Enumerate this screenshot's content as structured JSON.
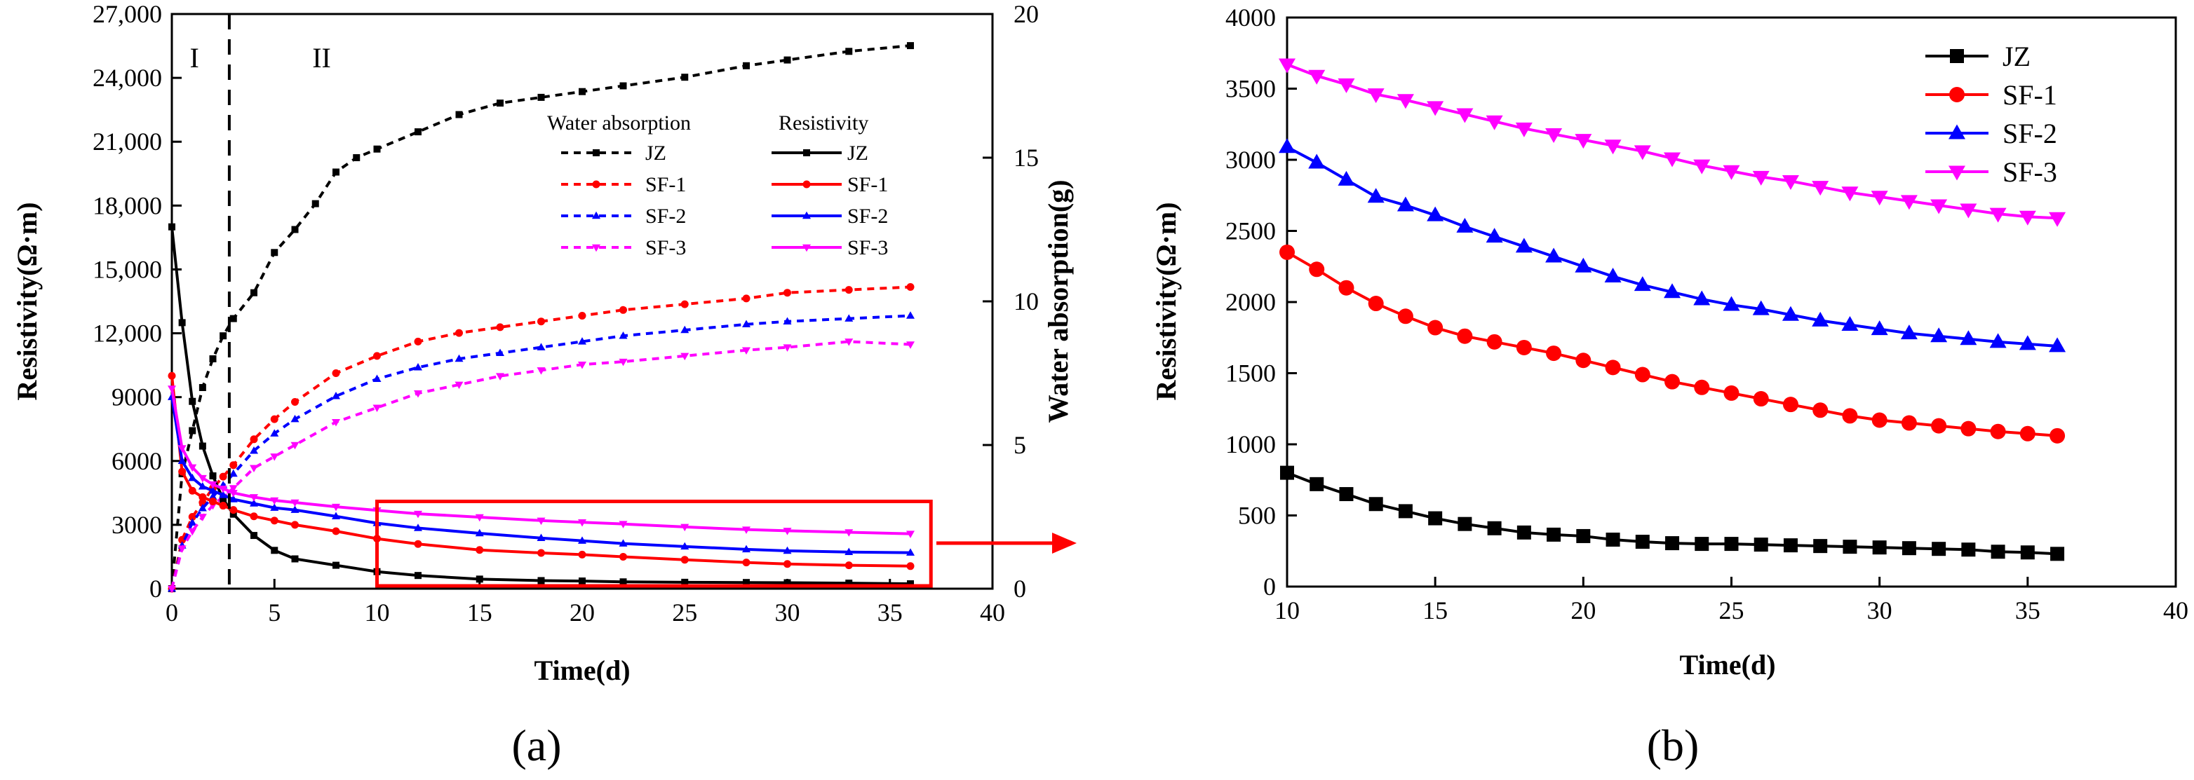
{
  "colors": {
    "JZ": "#000000",
    "SF-1": "#ff0000",
    "SF-2": "#0000ff",
    "SF-3": "#ff00ff",
    "highlight": "#ff0000"
  },
  "chart_data": [
    {
      "type": "line",
      "panel_label": "(a)",
      "title": "",
      "xlabel": "Time(d)",
      "ylabel": "Resistivity(Ω·m)",
      "y2label": "Water absorption(g)",
      "xlim": [
        0,
        40
      ],
      "ylim": [
        0,
        27000
      ],
      "y2lim": [
        0,
        20
      ],
      "xticks": [
        0,
        5,
        10,
        15,
        20,
        25,
        30,
        35,
        40
      ],
      "yticks": [
        0,
        3000,
        6000,
        9000,
        12000,
        15000,
        18000,
        21000,
        24000,
        27000
      ],
      "ytick_labels": [
        "0",
        "3000",
        "6000",
        "9000",
        "12,000",
        "15,000",
        "18,000",
        "21,000",
        "24,000",
        "27,000"
      ],
      "y2ticks": [
        0,
        5,
        10,
        15,
        20
      ],
      "x_tick_labels": [
        "0",
        "5",
        "10",
        "15",
        "20",
        "25",
        "30",
        "35",
        "40"
      ],
      "y2_tick_labels": [
        "0",
        "5",
        "10",
        "15",
        "20"
      ],
      "regions": [
        {
          "label": "I"
        },
        {
          "label": "II"
        }
      ],
      "region_boundary_x": 2.8,
      "legend_titles": [
        "Water absorption",
        "Resistivity"
      ],
      "series_resistivity": [
        {
          "name": "JZ",
          "x": [
            0,
            0.5,
            1,
            1.5,
            2,
            2.5,
            3,
            4,
            5,
            6,
            8,
            10,
            12,
            15,
            18,
            20,
            22,
            25,
            28,
            30,
            33,
            36
          ],
          "values": [
            17000,
            12500,
            8800,
            6700,
            5300,
            4200,
            3500,
            2500,
            1800,
            1400,
            1100,
            800,
            620,
            450,
            380,
            360,
            320,
            300,
            290,
            280,
            260,
            230
          ]
        },
        {
          "name": "SF-1",
          "x": [
            0,
            0.5,
            1,
            1.5,
            2,
            2.5,
            3,
            4,
            5,
            6,
            8,
            10,
            12,
            15,
            18,
            20,
            22,
            25,
            28,
            30,
            33,
            36
          ],
          "values": [
            10000,
            5500,
            4600,
            4300,
            4100,
            3900,
            3700,
            3400,
            3200,
            3000,
            2700,
            2350,
            2100,
            1820,
            1680,
            1600,
            1500,
            1360,
            1230,
            1160,
            1100,
            1060
          ]
        },
        {
          "name": "SF-2",
          "x": [
            0,
            0.5,
            1,
            1.5,
            2,
            2.5,
            3,
            4,
            5,
            6,
            8,
            10,
            12,
            15,
            18,
            20,
            22,
            25,
            28,
            30,
            33,
            36
          ],
          "values": [
            9000,
            6000,
            5200,
            4800,
            4600,
            4400,
            4200,
            4000,
            3800,
            3700,
            3400,
            3080,
            2850,
            2600,
            2380,
            2250,
            2120,
            1980,
            1850,
            1780,
            1720,
            1690
          ]
        },
        {
          "name": "SF-3",
          "x": [
            0,
            0.5,
            1,
            1.5,
            2,
            2.5,
            3,
            4,
            5,
            6,
            8,
            10,
            12,
            15,
            18,
            20,
            22,
            25,
            28,
            30,
            33,
            36
          ],
          "values": [
            9400,
            6600,
            5700,
            5200,
            4900,
            4700,
            4500,
            4300,
            4150,
            4050,
            3850,
            3680,
            3520,
            3360,
            3200,
            3120,
            3040,
            2900,
            2780,
            2720,
            2650,
            2580
          ]
        }
      ],
      "series_water": [
        {
          "name": "JZ",
          "x": [
            0,
            0.5,
            1,
            1.5,
            2,
            2.5,
            3,
            4,
            5,
            6,
            7,
            8,
            9,
            10,
            12,
            14,
            16,
            18,
            20,
            22,
            25,
            28,
            30,
            33,
            36
          ],
          "values": [
            0,
            4,
            5.5,
            7,
            8,
            8.8,
            9.4,
            10.3,
            11.7,
            12.5,
            13.4,
            14.5,
            15,
            15.3,
            15.9,
            16.5,
            16.9,
            17.1,
            17.3,
            17.5,
            17.8,
            18.2,
            18.4,
            18.7,
            18.9
          ]
        },
        {
          "name": "SF-1",
          "x": [
            0,
            0.5,
            1,
            1.5,
            2,
            2.5,
            3,
            4,
            5,
            6,
            8,
            10,
            12,
            14,
            16,
            18,
            20,
            22,
            25,
            28,
            30,
            33,
            36
          ],
          "values": [
            0,
            1.7,
            2.5,
            3,
            3.5,
            3.9,
            4.3,
            5.2,
            5.9,
            6.5,
            7.5,
            8.1,
            8.6,
            8.9,
            9.1,
            9.3,
            9.5,
            9.7,
            9.9,
            10.1,
            10.3,
            10.4,
            10.5
          ]
        },
        {
          "name": "SF-2",
          "x": [
            0,
            0.5,
            1,
            1.5,
            2,
            2.5,
            3,
            4,
            5,
            6,
            8,
            10,
            12,
            14,
            16,
            18,
            20,
            22,
            25,
            28,
            30,
            33,
            36
          ],
          "values": [
            0,
            1.5,
            2.3,
            2.8,
            3.2,
            3.6,
            4,
            4.8,
            5.4,
            5.9,
            6.7,
            7.3,
            7.7,
            8,
            8.2,
            8.4,
            8.6,
            8.8,
            9,
            9.2,
            9.3,
            9.4,
            9.5
          ]
        },
        {
          "name": "SF-3",
          "x": [
            0,
            0.5,
            1,
            1.5,
            2,
            2.5,
            3,
            4,
            5,
            6,
            8,
            10,
            12,
            14,
            16,
            18,
            20,
            22,
            25,
            28,
            30,
            33,
            36
          ],
          "values": [
            0,
            1.4,
            2,
            2.5,
            2.9,
            3.2,
            3.5,
            4.2,
            4.6,
            5,
            5.8,
            6.3,
            6.8,
            7.1,
            7.4,
            7.6,
            7.8,
            7.9,
            8.1,
            8.3,
            8.4,
            8.6,
            8.5
          ]
        }
      ],
      "highlight_box": {
        "x": [
          10,
          37
        ],
        "y": [
          0,
          4100
        ]
      }
    },
    {
      "type": "line",
      "panel_label": "(b)",
      "title": "",
      "xlabel": "Time(d)",
      "ylabel": "Resistivity(Ω·m)",
      "xlim": [
        10,
        40
      ],
      "ylim": [
        0,
        4000
      ],
      "xticks": [
        10,
        15,
        20,
        25,
        30,
        35,
        40
      ],
      "x_tick_labels": [
        "10",
        "15",
        "20",
        "25",
        "30",
        "35",
        "40"
      ],
      "yticks": [
        0,
        500,
        1000,
        1500,
        2000,
        2500,
        3000,
        3500,
        4000
      ],
      "y_tick_labels": [
        "0",
        "500",
        "1000",
        "1500",
        "2000",
        "2500",
        "3000",
        "3500",
        "4000"
      ],
      "legend_position": "top-center",
      "x": [
        10,
        11,
        12,
        13,
        14,
        15,
        16,
        17,
        18,
        19,
        20,
        21,
        22,
        23,
        24,
        25,
        26,
        27,
        28,
        29,
        30,
        31,
        32,
        33,
        34,
        35,
        36
      ],
      "series": [
        {
          "name": "JZ",
          "marker": "square",
          "values": [
            800,
            720,
            650,
            580,
            530,
            480,
            440,
            410,
            380,
            365,
            355,
            330,
            315,
            305,
            300,
            300,
            295,
            290,
            285,
            280,
            275,
            270,
            265,
            260,
            245,
            240,
            230
          ]
        },
        {
          "name": "SF-1",
          "marker": "circle",
          "values": [
            2350,
            2230,
            2100,
            1990,
            1900,
            1820,
            1760,
            1720,
            1680,
            1640,
            1590,
            1540,
            1490,
            1440,
            1400,
            1360,
            1320,
            1280,
            1240,
            1200,
            1170,
            1150,
            1130,
            1110,
            1090,
            1075,
            1060
          ]
        },
        {
          "name": "SF-2",
          "marker": "triangle-up",
          "values": [
            3090,
            2980,
            2860,
            2740,
            2680,
            2610,
            2530,
            2460,
            2390,
            2320,
            2250,
            2180,
            2120,
            2070,
            2020,
            1980,
            1950,
            1910,
            1870,
            1840,
            1810,
            1780,
            1760,
            1740,
            1720,
            1705,
            1690
          ]
        },
        {
          "name": "SF-3",
          "marker": "triangle-down",
          "values": [
            3670,
            3590,
            3530,
            3460,
            3420,
            3370,
            3320,
            3270,
            3220,
            3180,
            3140,
            3100,
            3060,
            3010,
            2960,
            2920,
            2880,
            2850,
            2810,
            2770,
            2740,
            2710,
            2680,
            2650,
            2620,
            2600,
            2590
          ]
        }
      ]
    }
  ]
}
